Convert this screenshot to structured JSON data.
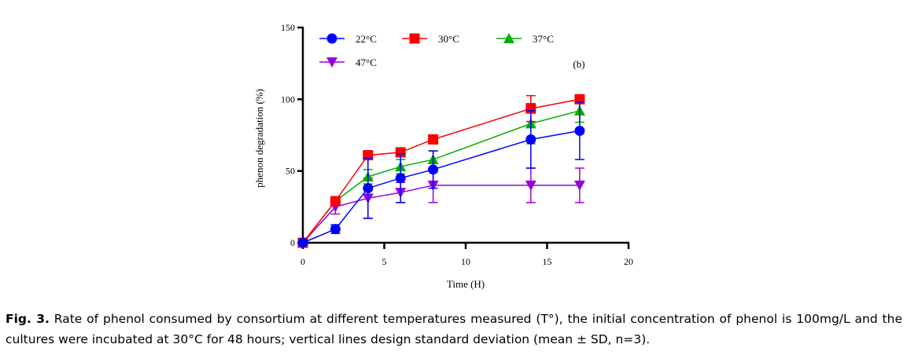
{
  "chart_data": {
    "type": "line",
    "panel_label": "(b)",
    "xlabel": "Time (H)",
    "ylabel": "phenon degradation (%)",
    "xlim": [
      0,
      20
    ],
    "ylim": [
      0,
      150
    ],
    "xticks": [
      0,
      5,
      10,
      15,
      20
    ],
    "yticks": [
      0,
      50,
      100,
      150
    ],
    "grid": false,
    "legend_position": "top-left",
    "x": [
      0,
      2,
      4,
      6,
      8,
      14,
      17
    ],
    "series": [
      {
        "name": "22°C",
        "color": "#0000ff",
        "marker": "circle",
        "values": [
          0,
          9.5,
          38,
          45,
          51,
          72,
          78
        ],
        "err": [
          0,
          3,
          21,
          17,
          13,
          20,
          20
        ]
      },
      {
        "name": "30°C",
        "color": "#ff0000",
        "marker": "square",
        "values": [
          0,
          29,
          61,
          63,
          72,
          93.5,
          100
        ],
        "err": [
          0,
          1,
          1,
          1,
          1,
          9,
          1
        ]
      },
      {
        "name": "37°C",
        "color": "#00b000",
        "marker": "triangle-up",
        "values": [
          0,
          29,
          46,
          53,
          58,
          83,
          92
        ],
        "err": [
          0,
          1,
          5,
          5,
          6,
          14,
          8
        ]
      },
      {
        "name": "47°C",
        "color": "#9900dd",
        "marker": "triangle-down",
        "values": [
          0,
          25,
          31,
          35,
          40,
          40,
          40
        ],
        "err": [
          0,
          5,
          14,
          7,
          12,
          12,
          12
        ]
      }
    ]
  },
  "caption": {
    "label": "Fig. 3.",
    "text": " Rate of phenol consumed by consortium at different temperatures measured (T°), the initial concentration of phenol is 100mg/L and the cultures were incubated at 30°C for 48 hours; vertical lines design standard deviation (mean ± SD, n=3)."
  }
}
